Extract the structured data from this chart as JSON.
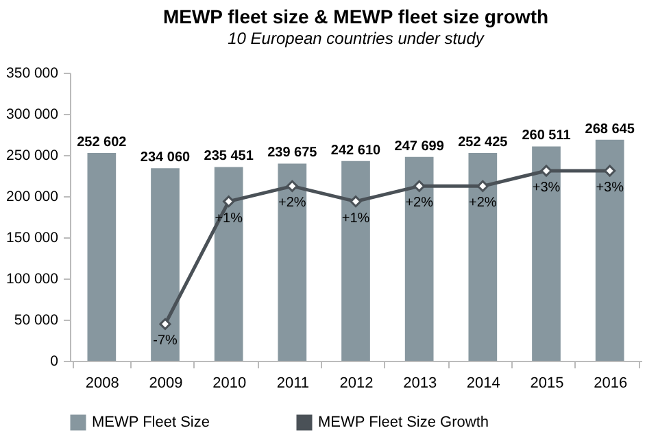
{
  "chart_data": {
    "type": "bar",
    "title": "MEWP fleet size & MEWP fleet size growth",
    "subtitle": "10 European countries under study",
    "categories": [
      "2008",
      "2009",
      "2010",
      "2011",
      "2012",
      "2013",
      "2014",
      "2015",
      "2016"
    ],
    "series": [
      {
        "name": "MEWP Fleet Size",
        "color": "#87979f",
        "values": [
          252602,
          234060,
          235451,
          239675,
          242610,
          247699,
          252425,
          260511,
          268645
        ]
      },
      {
        "name": "MEWP Fleet Size Growth",
        "type": "line",
        "axis": "y2",
        "color": "#4a5157",
        "values": [
          null,
          -7,
          1,
          2,
          1,
          2,
          2,
          3,
          3
        ],
        "value_labels": [
          null,
          "-7%",
          "+1%",
          "+2%",
          "+1%",
          "+2%",
          "+2%",
          "+3%",
          "+3%"
        ]
      }
    ],
    "ylim": [
      0,
      350000
    ],
    "yticks": [
      0,
      50000,
      100000,
      150000,
      200000,
      250000,
      300000,
      350000
    ],
    "y2lim": [
      -9.4,
      9.4
    ],
    "data_labels": true,
    "legend": "bottom",
    "marker": "diamond"
  }
}
